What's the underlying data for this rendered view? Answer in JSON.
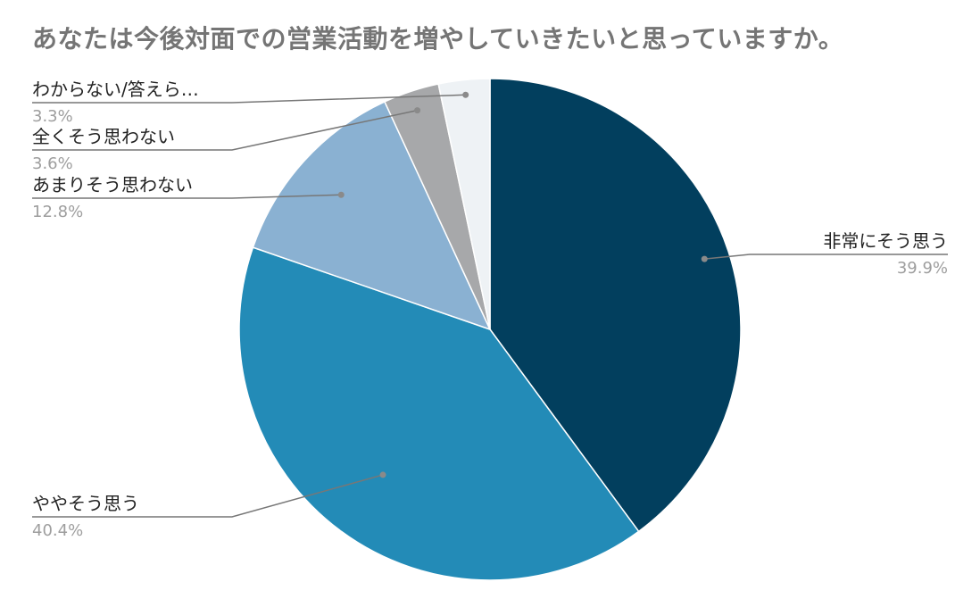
{
  "title": "あなたは今後対面での営業活動を増やしていきたいと思っていますか。",
  "chart_data": {
    "type": "pie",
    "title": "あなたは今後対面での営業活動を増やしていきたいと思っていますか。",
    "legend": "labels beside slices",
    "slices": [
      {
        "label": "非常にそう思う",
        "value": 39.9,
        "display": "39.9%",
        "color": "#023f5e"
      },
      {
        "label": "ややそう思う",
        "value": 40.4,
        "display": "40.4%",
        "color": "#238bb7"
      },
      {
        "label": "あまりそう思わない",
        "value": 12.8,
        "display": "12.8%",
        "color": "#8ab1d2"
      },
      {
        "label": "全くそう思わない",
        "value": 3.6,
        "display": "3.6%",
        "color": "#a7a8aa"
      },
      {
        "label": "わからない/答えら…",
        "value": 3.3,
        "display": "3.3%",
        "color": "#eef2f5"
      }
    ]
  }
}
